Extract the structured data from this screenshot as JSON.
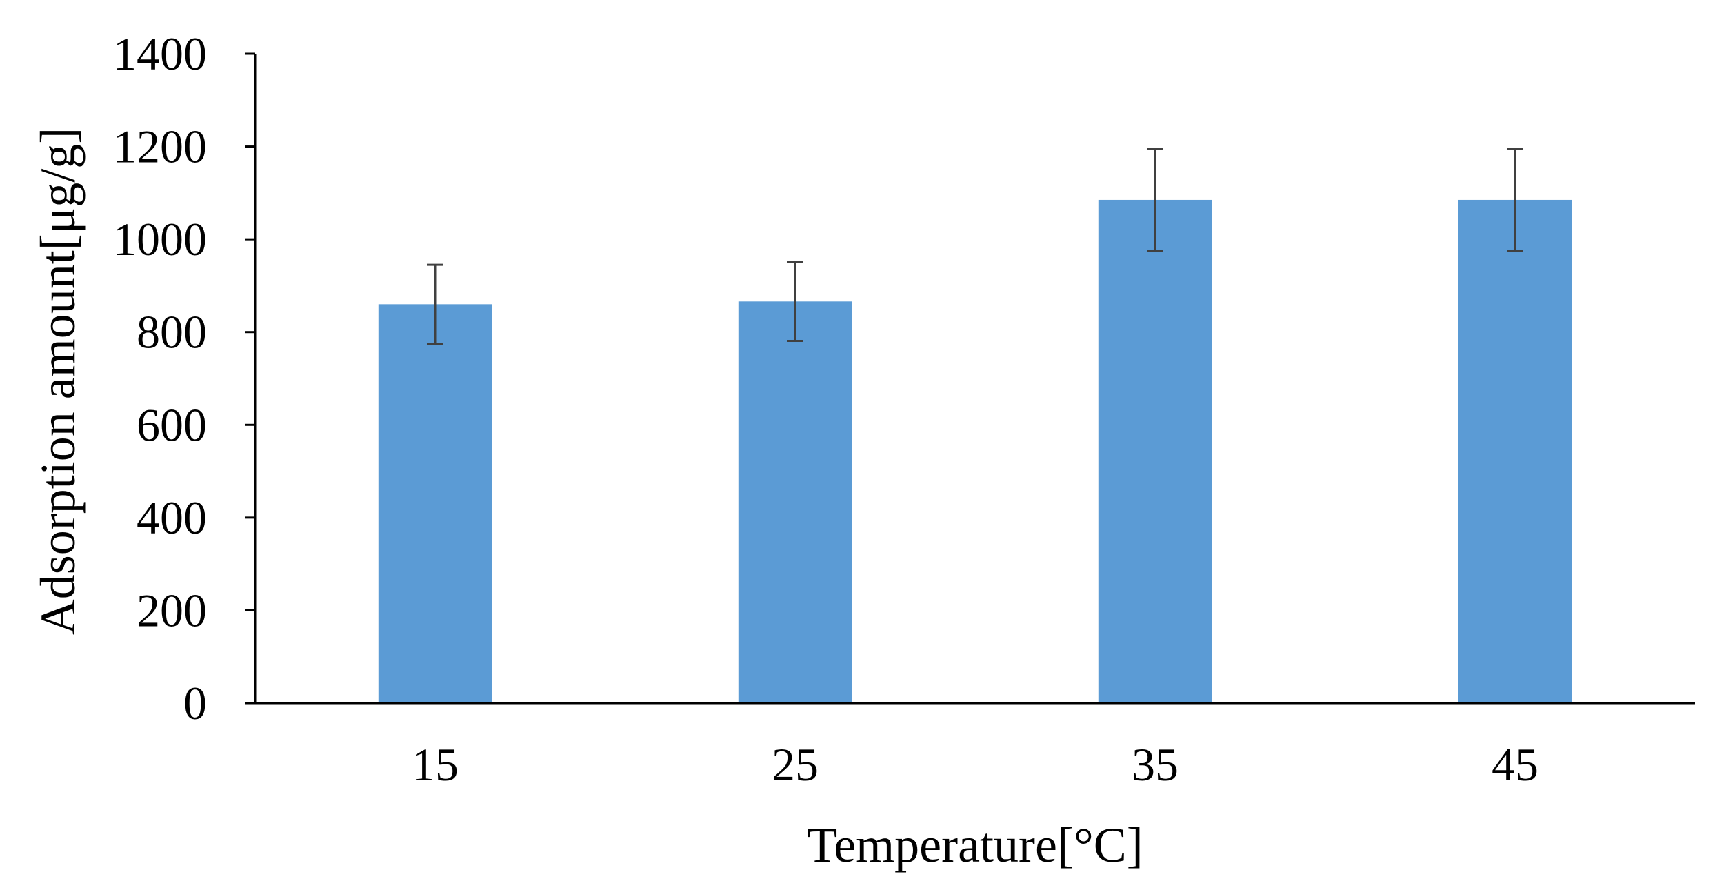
{
  "chart_data": {
    "type": "bar",
    "title": "",
    "xlabel": "Temperature[°C]",
    "ylabel": "Adsorption amount[μg/g]",
    "categories": [
      "15",
      "25",
      "35",
      "45"
    ],
    "series": [
      {
        "values": [
          860,
          866,
          1085,
          1085
        ],
        "error": [
          85,
          85,
          110,
          110
        ]
      }
    ],
    "ylim": [
      0,
      1400
    ],
    "yticks": [
      0,
      200,
      400,
      600,
      800,
      1000,
      1200,
      1400
    ],
    "grid": false,
    "legend": "none",
    "colors": {
      "bar": "#5b9bd5",
      "error_bar": "#404040",
      "axis": "#000000"
    }
  }
}
